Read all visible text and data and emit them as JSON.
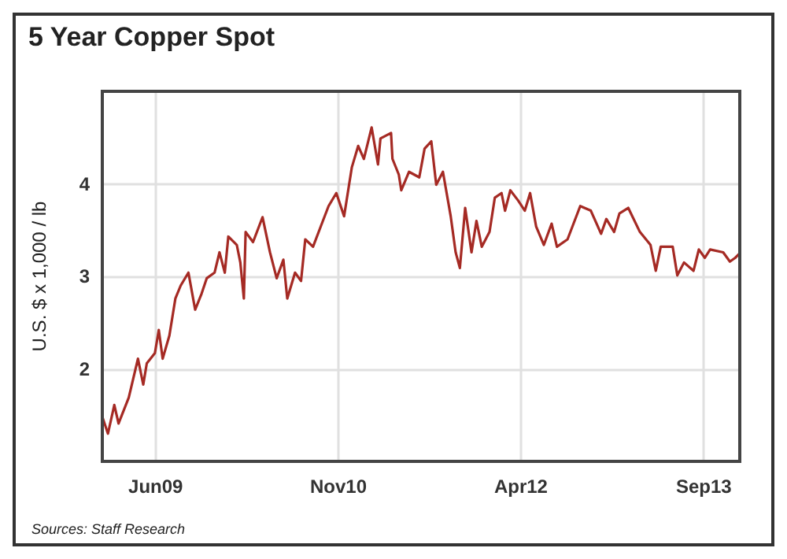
{
  "chart_data": {
    "type": "line",
    "title": "5 Year Copper Spot",
    "ylabel": "U.S. $ x 1,000 / lb",
    "annotations": [
      "Sources: Staff Research"
    ],
    "x": [
      "2009-01-02",
      "2009-01-17",
      "2009-02-04",
      "2009-02-16",
      "2009-03-17",
      "2009-04-12",
      "2009-04-27",
      "2009-05-07",
      "2009-05-30",
      "2009-06-10",
      "2009-06-21",
      "2009-07-10",
      "2009-07-27",
      "2009-08-11",
      "2009-09-02",
      "2009-09-21",
      "2009-10-09",
      "2009-10-24",
      "2009-11-15",
      "2009-11-29",
      "2009-12-14",
      "2009-12-24",
      "2010-01-17",
      "2010-01-27",
      "2010-02-06",
      "2010-02-11",
      "2010-03-04",
      "2010-03-31",
      "2010-04-21",
      "2010-05-10",
      "2010-05-29",
      "2010-06-09",
      "2010-07-01",
      "2010-07-18",
      "2010-07-30",
      "2010-08-21",
      "2010-09-12",
      "2010-10-04",
      "2010-10-26",
      "2010-11-17",
      "2010-12-09",
      "2010-12-27",
      "2011-01-12",
      "2011-02-03",
      "2011-02-21",
      "2011-02-28",
      "2011-03-15",
      "2011-03-30",
      "2011-04-03",
      "2011-04-21",
      "2011-04-28",
      "2011-05-20",
      "2011-06-18",
      "2011-07-03",
      "2011-07-22",
      "2011-08-05",
      "2011-08-24",
      "2011-09-15",
      "2011-09-29",
      "2011-10-11",
      "2011-10-26",
      "2011-11-13",
      "2011-11-27",
      "2011-12-12",
      "2012-01-03",
      "2012-01-18",
      "2012-02-06",
      "2012-02-16",
      "2012-03-02",
      "2012-03-24",
      "2012-04-12",
      "2012-04-27",
      "2012-05-14",
      "2012-06-05",
      "2012-06-27",
      "2012-07-12",
      "2012-08-11",
      "2012-09-16",
      "2012-10-16",
      "2012-11-14",
      "2012-11-29",
      "2012-12-21",
      "2013-01-05",
      "2013-01-30",
      "2013-03-04",
      "2013-04-03",
      "2013-04-18",
      "2013-05-02",
      "2013-06-05",
      "2013-06-18",
      "2013-07-07",
      "2013-08-03",
      "2013-08-18",
      "2013-09-04",
      "2013-09-19",
      "2013-10-26",
      "2013-11-14",
      "2013-11-29",
      "2013-12-12"
    ],
    "series": [
      {
        "color": "#a52a24",
        "values": [
          1.47,
          1.3,
          1.61,
          1.41,
          1.69,
          2.11,
          1.83,
          2.06,
          2.17,
          2.42,
          2.11,
          2.36,
          2.76,
          2.9,
          3.04,
          2.64,
          2.81,
          2.98,
          3.04,
          3.26,
          3.04,
          3.43,
          3.34,
          3.15,
          2.76,
          3.48,
          3.37,
          3.64,
          3.26,
          2.98,
          3.18,
          2.76,
          3.04,
          2.95,
          3.4,
          3.32,
          3.54,
          3.76,
          3.9,
          3.65,
          4.18,
          4.41,
          4.27,
          4.61,
          4.21,
          4.49,
          4.52,
          4.55,
          4.27,
          4.1,
          3.93,
          4.13,
          4.07,
          4.38,
          4.46,
          3.99,
          4.13,
          3.65,
          3.26,
          3.09,
          3.74,
          3.26,
          3.6,
          3.32,
          3.48,
          3.85,
          3.9,
          3.71,
          3.93,
          3.82,
          3.71,
          3.9,
          3.54,
          3.34,
          3.57,
          3.32,
          3.4,
          3.76,
          3.71,
          3.46,
          3.62,
          3.48,
          3.68,
          3.74,
          3.48,
          3.34,
          3.06,
          3.32,
          3.32,
          3.01,
          3.15,
          3.06,
          3.29,
          3.2,
          3.29,
          3.26,
          3.16,
          3.2,
          3.25
        ]
      }
    ],
    "xlim": [
      "2009-01-01",
      "2013-12-12"
    ],
    "xticks": [
      {
        "value": "2009-06-01",
        "label": "Jun09"
      },
      {
        "value": "2010-11-01",
        "label": "Nov10"
      },
      {
        "value": "2012-04-01",
        "label": "Apr12"
      },
      {
        "value": "2013-09-01",
        "label": "Sep13"
      }
    ],
    "ylim": [
      1,
      5
    ],
    "yticks": [
      2,
      3,
      4
    ],
    "grid": true,
    "marker": "none",
    "line_style": "solid"
  }
}
